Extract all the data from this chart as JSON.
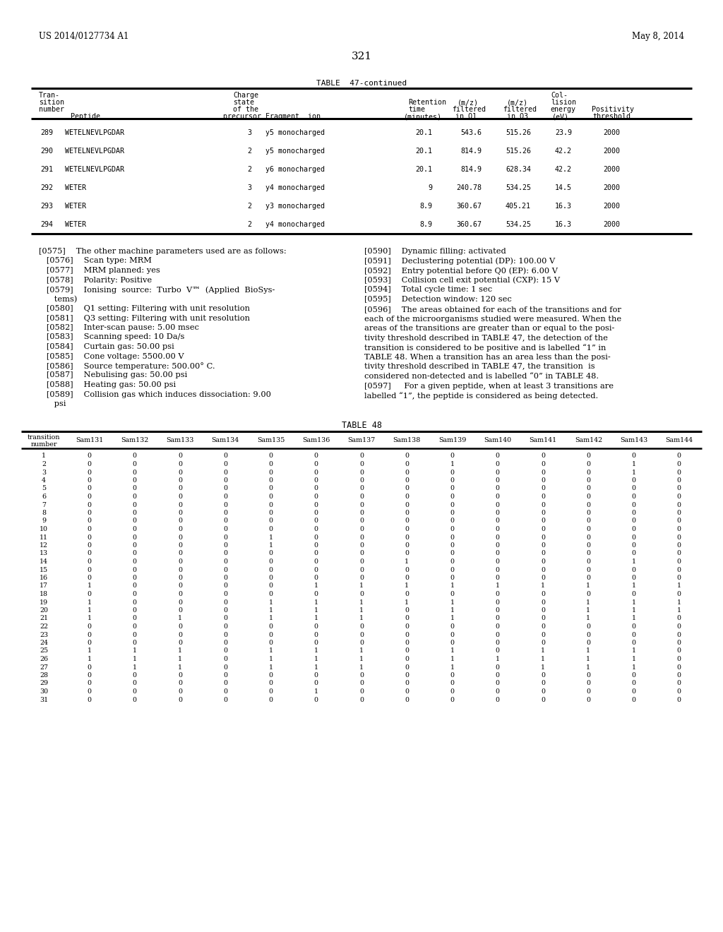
{
  "header_left": "US 2014/0127734 A1",
  "header_right": "May 8, 2014",
  "page_number": "321",
  "table47_title": "TABLE  47-continued",
  "table47_data": [
    [
      "289",
      "WETELNEVLPGDAR",
      "3",
      "y5 monocharged",
      "20.1",
      "543.6",
      "515.26",
      "23.9",
      "2000"
    ],
    [
      "290",
      "WETELNEVLPGDAR",
      "2",
      "y5 monocharged",
      "20.1",
      "814.9",
      "515.26",
      "42.2",
      "2000"
    ],
    [
      "291",
      "WETELNEVLPGDAR",
      "2",
      "y6 monocharged",
      "20.1",
      "814.9",
      "628.34",
      "42.2",
      "2000"
    ],
    [
      "292",
      "WETER",
      "3",
      "y4 monocharged",
      "9",
      "240.78",
      "534.25",
      "14.5",
      "2000"
    ],
    [
      "293",
      "WETER",
      "2",
      "y3 monocharged",
      "8.9",
      "360.67",
      "405.21",
      "16.3",
      "2000"
    ],
    [
      "294",
      "WETER",
      "2",
      "y4 monocharged",
      "8.9",
      "360.67",
      "534.25",
      "16.3",
      "2000"
    ]
  ],
  "left_paragraphs": [
    {
      "tag": "[0575]",
      "indent": false,
      "lines": [
        "[0575]  The other machine parameters used are as follows:"
      ]
    },
    {
      "tag": "[0576]",
      "indent": true,
      "lines": [
        "   [0576]  Scan type: MRM"
      ]
    },
    {
      "tag": "[0577]",
      "indent": true,
      "lines": [
        "   [0577]  MRM planned: yes"
      ]
    },
    {
      "tag": "[0578]",
      "indent": true,
      "lines": [
        "   [0578]  Polarity: Positive"
      ]
    },
    {
      "tag": "[0579]",
      "indent": true,
      "lines": [
        "   [0579]  Ionising  source:  Turbo  V™  (Applied  BioSys-",
        "      tems)"
      ]
    },
    {
      "tag": "[0580]",
      "indent": true,
      "lines": [
        "   [0580]  Q1 setting: Filtering with unit resolution"
      ]
    },
    {
      "tag": "[0581]",
      "indent": true,
      "lines": [
        "   [0581]  Q3 setting: Filtering with unit resolution"
      ]
    },
    {
      "tag": "[0582]",
      "indent": true,
      "lines": [
        "   [0582]  Inter-scan pause: 5.00 msec"
      ]
    },
    {
      "tag": "[0583]",
      "indent": true,
      "lines": [
        "   [0583]  Scanning speed: 10 Da/s"
      ]
    },
    {
      "tag": "[0584]",
      "indent": true,
      "lines": [
        "   [0584]  Curtain gas: 50.00 psi"
      ]
    },
    {
      "tag": "[0585]",
      "indent": true,
      "lines": [
        "   [0585]  Cone voltage: 5500.00 V"
      ]
    },
    {
      "tag": "[0586]",
      "indent": true,
      "lines": [
        "   [0586]  Source temperature: 500.00° C."
      ]
    },
    {
      "tag": "[0587]",
      "indent": true,
      "lines": [
        "   [0587]  Nebulising gas: 50.00 psi"
      ]
    },
    {
      "tag": "[0588]",
      "indent": true,
      "lines": [
        "   [0588]  Heating gas: 50.00 psi"
      ]
    },
    {
      "tag": "[0589]",
      "indent": true,
      "lines": [
        "   [0589]  Collision gas which induces dissociation: 9.00",
        "      psi"
      ]
    }
  ],
  "right_paragraphs": [
    {
      "tag": "[0590]",
      "lines": [
        "[0590]  Dynamic filling: activated"
      ]
    },
    {
      "tag": "[0591]",
      "lines": [
        "[0591]  Declustering potential (DP): 100.00 V"
      ]
    },
    {
      "tag": "[0592]",
      "lines": [
        "[0592]  Entry potential before Q0 (EP): 6.00 V"
      ]
    },
    {
      "tag": "[0593]",
      "lines": [
        "[0593]  Collision cell exit potential (CXP): 15 V"
      ]
    },
    {
      "tag": "[0594]",
      "lines": [
        "[0594]  Total cycle time: 1 sec"
      ]
    },
    {
      "tag": "[0595]",
      "lines": [
        "[0595]  Detection window: 120 sec"
      ]
    },
    {
      "tag": "[0596]",
      "lines": [
        "[0596]  The areas obtained for each of the transitions and for",
        "each of the microorganisms studied were measured. When the",
        "areas of the transitions are greater than or equal to the posi-",
        "tivity threshold described in TABLE 47, the detection of the",
        "transition is considered to be positive and is labelled “1” in",
        "TABLE 48. When a transition has an area less than the posi-",
        "tivity threshold described in TABLE 47, the transition  is",
        "considered non-detected and is labelled “0” in TABLE 48."
      ]
    },
    {
      "tag": "[0597]",
      "lines": [
        "[0597]   For a given peptide, when at least 3 transitions are",
        "labelled “1”, the peptide is considered as being detected."
      ]
    }
  ],
  "table48_title": "TABLE 48",
  "table48_col_headers": [
    "transition\nnumber",
    "Sam131",
    "Sam132",
    "Sam133",
    "Sam134",
    "Sam135",
    "Sam136",
    "Sam137",
    "Sam138",
    "Sam139",
    "Sam140",
    "Sam141",
    "Sam142",
    "Sam143",
    "Sam144"
  ],
  "table48_data": [
    [
      1,
      0,
      0,
      0,
      0,
      0,
      0,
      0,
      0,
      0,
      0,
      0,
      0,
      0,
      0
    ],
    [
      2,
      0,
      0,
      0,
      0,
      0,
      0,
      0,
      0,
      1,
      0,
      0,
      0,
      1,
      0
    ],
    [
      3,
      0,
      0,
      0,
      0,
      0,
      0,
      0,
      0,
      0,
      0,
      0,
      0,
      1,
      0
    ],
    [
      4,
      0,
      0,
      0,
      0,
      0,
      0,
      0,
      0,
      0,
      0,
      0,
      0,
      0,
      0
    ],
    [
      5,
      0,
      0,
      0,
      0,
      0,
      0,
      0,
      0,
      0,
      0,
      0,
      0,
      0,
      0
    ],
    [
      6,
      0,
      0,
      0,
      0,
      0,
      0,
      0,
      0,
      0,
      0,
      0,
      0,
      0,
      0
    ],
    [
      7,
      0,
      0,
      0,
      0,
      0,
      0,
      0,
      0,
      0,
      0,
      0,
      0,
      0,
      0
    ],
    [
      8,
      0,
      0,
      0,
      0,
      0,
      0,
      0,
      0,
      0,
      0,
      0,
      0,
      0,
      0
    ],
    [
      9,
      0,
      0,
      0,
      0,
      0,
      0,
      0,
      0,
      0,
      0,
      0,
      0,
      0,
      0
    ],
    [
      10,
      0,
      0,
      0,
      0,
      0,
      0,
      0,
      0,
      0,
      0,
      0,
      0,
      0,
      0
    ],
    [
      11,
      0,
      0,
      0,
      0,
      1,
      0,
      0,
      0,
      0,
      0,
      0,
      0,
      0,
      0
    ],
    [
      12,
      0,
      0,
      0,
      0,
      1,
      0,
      0,
      0,
      0,
      0,
      0,
      0,
      0,
      0
    ],
    [
      13,
      0,
      0,
      0,
      0,
      0,
      0,
      0,
      0,
      0,
      0,
      0,
      0,
      0,
      0
    ],
    [
      14,
      0,
      0,
      0,
      0,
      0,
      0,
      0,
      1,
      0,
      0,
      0,
      0,
      1,
      0
    ],
    [
      15,
      0,
      0,
      0,
      0,
      0,
      0,
      0,
      0,
      0,
      0,
      0,
      0,
      0,
      0
    ],
    [
      16,
      0,
      0,
      0,
      0,
      0,
      0,
      0,
      0,
      0,
      0,
      0,
      0,
      0,
      0
    ],
    [
      17,
      1,
      0,
      0,
      0,
      0,
      1,
      1,
      1,
      1,
      1,
      1,
      1,
      1,
      1
    ],
    [
      18,
      0,
      0,
      0,
      0,
      0,
      0,
      0,
      0,
      0,
      0,
      0,
      0,
      0,
      0
    ],
    [
      19,
      1,
      0,
      0,
      0,
      1,
      1,
      1,
      1,
      1,
      0,
      0,
      1,
      1,
      1
    ],
    [
      20,
      1,
      0,
      0,
      0,
      1,
      1,
      1,
      0,
      1,
      0,
      0,
      1,
      1,
      1
    ],
    [
      21,
      1,
      0,
      1,
      0,
      1,
      1,
      1,
      0,
      1,
      0,
      0,
      1,
      1,
      0
    ],
    [
      22,
      0,
      0,
      0,
      0,
      0,
      0,
      0,
      0,
      0,
      0,
      0,
      0,
      0,
      0
    ],
    [
      23,
      0,
      0,
      0,
      0,
      0,
      0,
      0,
      0,
      0,
      0,
      0,
      0,
      0,
      0
    ],
    [
      24,
      0,
      0,
      0,
      0,
      0,
      0,
      0,
      0,
      0,
      0,
      0,
      0,
      0,
      0
    ],
    [
      25,
      1,
      1,
      1,
      0,
      1,
      1,
      1,
      0,
      1,
      0,
      1,
      1,
      1,
      0
    ],
    [
      26,
      1,
      1,
      1,
      0,
      1,
      1,
      1,
      0,
      1,
      1,
      1,
      1,
      1,
      0
    ],
    [
      27,
      0,
      1,
      1,
      0,
      1,
      1,
      1,
      0,
      1,
      0,
      1,
      1,
      1,
      0
    ],
    [
      28,
      0,
      0,
      0,
      0,
      0,
      0,
      0,
      0,
      0,
      0,
      0,
      0,
      0,
      0
    ],
    [
      29,
      0,
      0,
      0,
      0,
      0,
      0,
      0,
      0,
      0,
      0,
      0,
      0,
      0,
      0
    ],
    [
      30,
      0,
      0,
      0,
      0,
      0,
      1,
      0,
      0,
      0,
      0,
      0,
      0,
      0,
      0
    ],
    [
      31,
      0,
      0,
      0,
      0,
      0,
      0,
      0,
      0,
      0,
      0,
      0,
      0,
      0,
      0
    ]
  ],
  "bg_color": "#ffffff",
  "text_color": "#000000"
}
